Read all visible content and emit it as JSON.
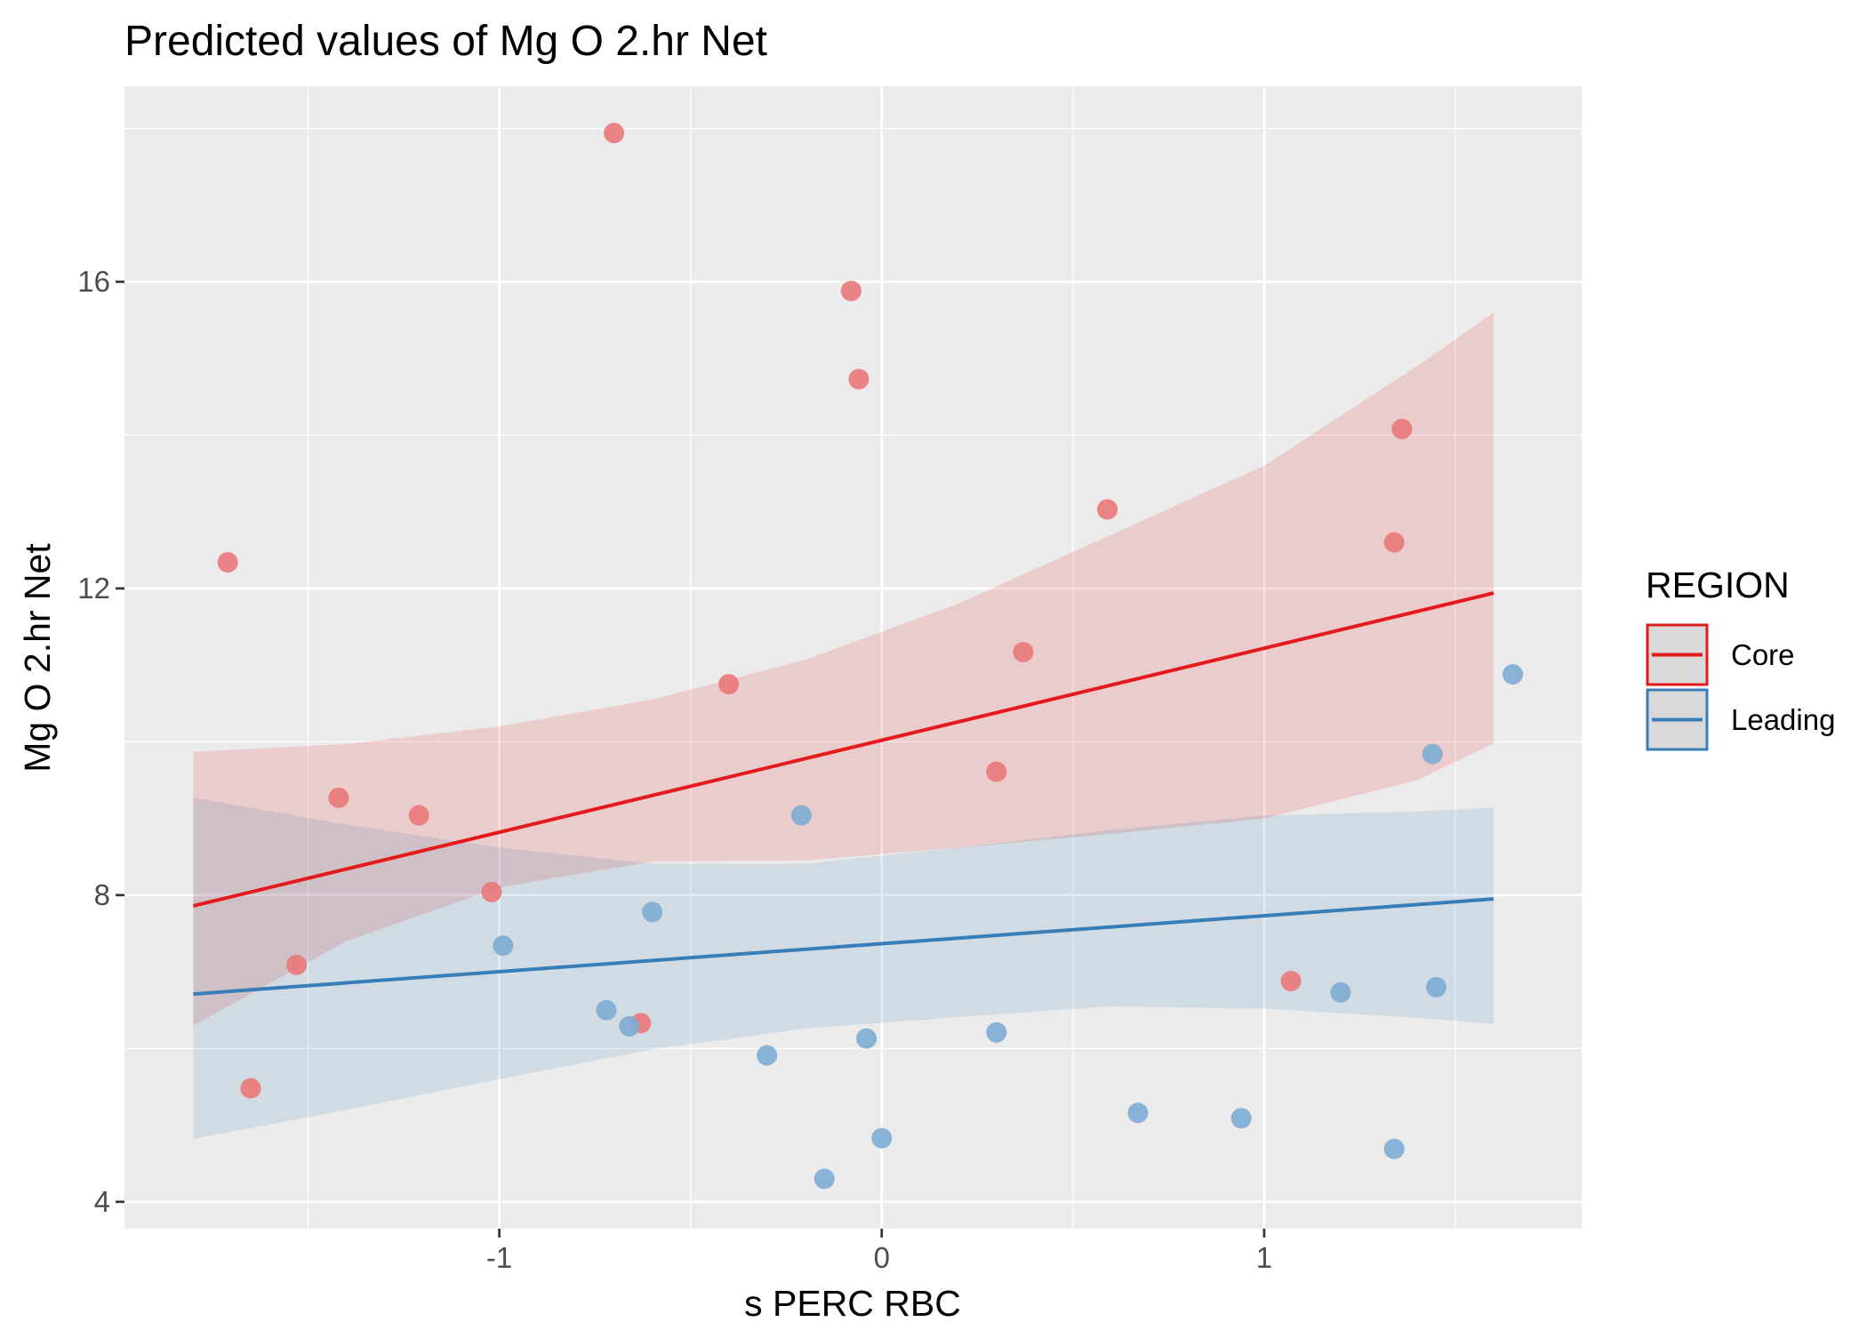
{
  "chart_data": {
    "type": "scatter",
    "title": "Predicted values of Mg O 2.hr Net",
    "xlabel": "s PERC RBC",
    "ylabel": "Mg O 2.hr Net",
    "xlim": [
      -1.98,
      1.83
    ],
    "ylim": [
      3.65,
      18.55
    ],
    "x_ticks": [
      -1,
      0,
      1
    ],
    "x_tick_labels": [
      "-1",
      "0",
      "1"
    ],
    "y_ticks": [
      4,
      8,
      12,
      16
    ],
    "y_tick_labels": [
      "4",
      "8",
      "12",
      "16"
    ],
    "grid": true,
    "legend": {
      "title": "REGION",
      "position": "right"
    },
    "series": [
      {
        "name": "Core",
        "color": "#e41a1c",
        "point_color": "#e87a7c",
        "points": [
          {
            "x": -1.71,
            "y": 12.34
          },
          {
            "x": -0.7,
            "y": 17.94
          },
          {
            "x": -0.08,
            "y": 15.88
          },
          {
            "x": -0.06,
            "y": 14.73
          },
          {
            "x": 1.36,
            "y": 14.08
          },
          {
            "x": 0.59,
            "y": 13.03
          },
          {
            "x": 1.34,
            "y": 12.6
          },
          {
            "x": 0.37,
            "y": 11.17
          },
          {
            "x": -0.4,
            "y": 10.75
          },
          {
            "x": 0.3,
            "y": 9.61
          },
          {
            "x": -1.42,
            "y": 9.27
          },
          {
            "x": -1.21,
            "y": 9.04
          },
          {
            "x": -1.02,
            "y": 8.04
          },
          {
            "x": -1.53,
            "y": 7.09
          },
          {
            "x": 1.07,
            "y": 6.88
          },
          {
            "x": -0.63,
            "y": 6.33
          },
          {
            "x": -1.65,
            "y": 5.48
          }
        ],
        "fit": {
          "x": [
            -1.8,
            1.6
          ],
          "y": [
            7.86,
            11.94
          ]
        },
        "ci_x": [
          -1.8,
          -1.4,
          -1.0,
          -0.6,
          -0.2,
          0.2,
          0.6,
          1.0,
          1.4,
          1.6
        ],
        "ci_lower": [
          6.3,
          7.4,
          8.1,
          8.44,
          8.45,
          8.62,
          8.8,
          9.0,
          9.5,
          9.98
        ],
        "ci_upper": [
          9.87,
          9.97,
          10.2,
          10.55,
          11.07,
          11.8,
          12.7,
          13.6,
          14.9,
          15.6
        ]
      },
      {
        "name": "Leading",
        "color": "#377eb8",
        "point_color": "#7faed4",
        "points": [
          {
            "x": 1.65,
            "y": 10.88
          },
          {
            "x": 1.44,
            "y": 9.84
          },
          {
            "x": -0.21,
            "y": 9.04
          },
          {
            "x": -0.6,
            "y": 7.78
          },
          {
            "x": -0.99,
            "y": 7.34
          },
          {
            "x": 1.45,
            "y": 6.8
          },
          {
            "x": 1.2,
            "y": 6.73
          },
          {
            "x": -0.72,
            "y": 6.5
          },
          {
            "x": -0.66,
            "y": 6.29
          },
          {
            "x": 0.3,
            "y": 6.21
          },
          {
            "x": -0.04,
            "y": 6.13
          },
          {
            "x": -0.3,
            "y": 5.91
          },
          {
            "x": 0.67,
            "y": 5.16
          },
          {
            "x": 0.94,
            "y": 5.09
          },
          {
            "x": 0.0,
            "y": 4.83
          },
          {
            "x": 1.34,
            "y": 4.69
          },
          {
            "x": -0.15,
            "y": 4.3
          }
        ],
        "fit": {
          "x": [
            -1.8,
            1.6
          ],
          "y": [
            6.71,
            7.95
          ]
        },
        "ci_x": [
          -1.8,
          -1.4,
          -1.0,
          -0.6,
          -0.2,
          0.2,
          0.6,
          1.0,
          1.4,
          1.6
        ],
        "ci_lower": [
          4.82,
          5.2,
          5.6,
          5.99,
          6.26,
          6.41,
          6.55,
          6.52,
          6.4,
          6.32
        ],
        "ci_upper": [
          9.27,
          8.92,
          8.62,
          8.41,
          8.41,
          8.62,
          8.85,
          9.04,
          9.09,
          9.14
        ]
      }
    ]
  }
}
